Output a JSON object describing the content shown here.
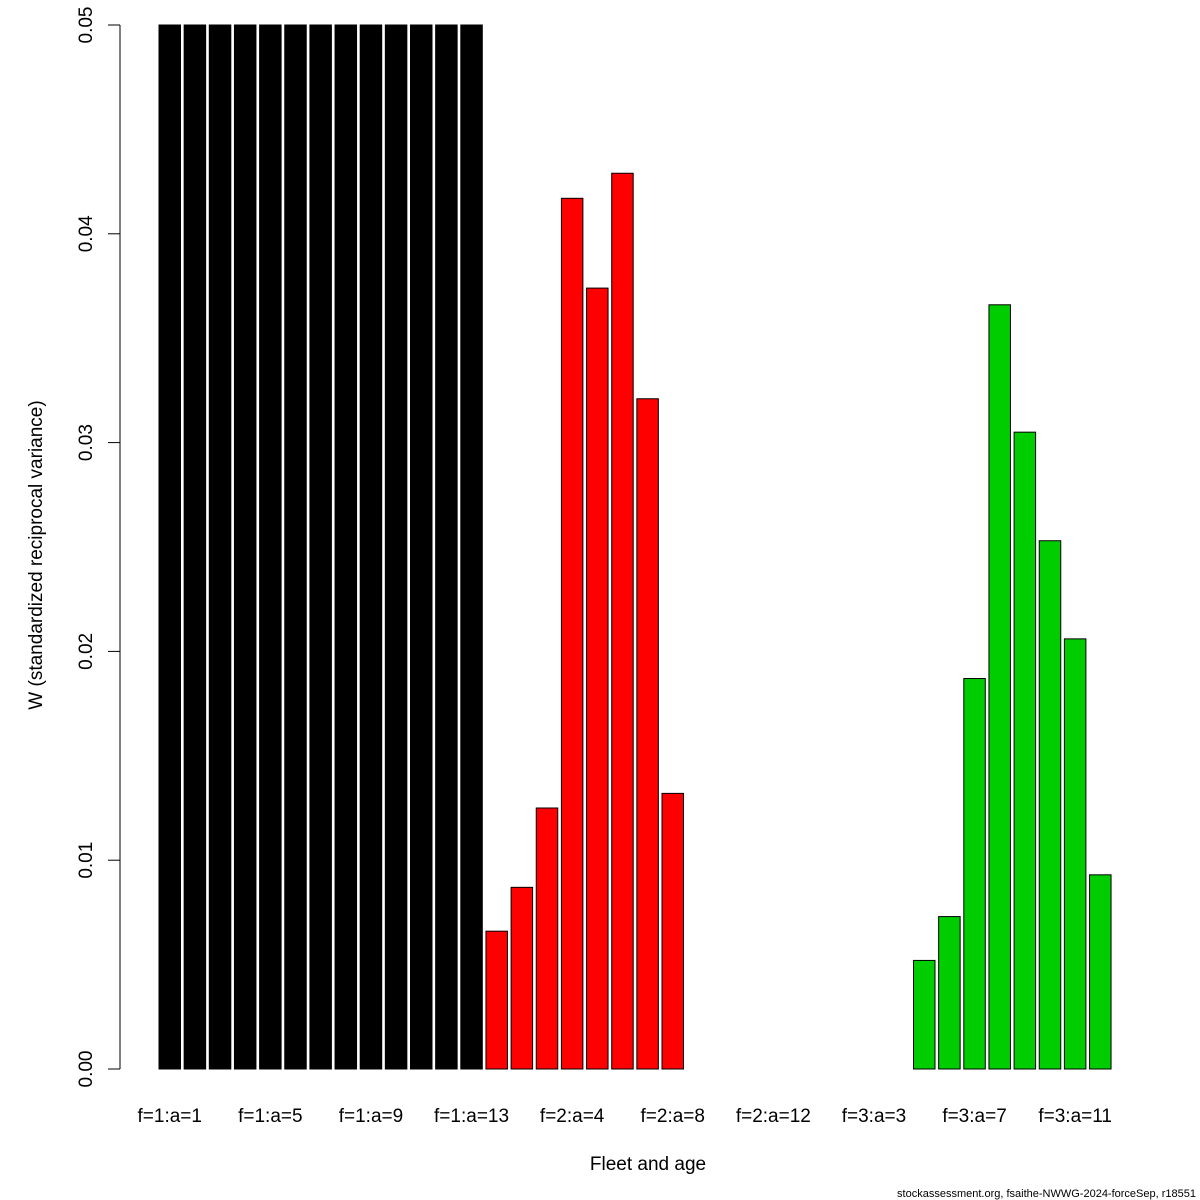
{
  "chart_data": {
    "type": "bar",
    "xlabel": "Fleet and age",
    "ylabel": "W (standardized reciprocal variance)",
    "ylim": [
      0,
      0.05
    ],
    "yticks": [
      "0.00",
      "0.01",
      "0.02",
      "0.03",
      "0.04",
      "0.05"
    ],
    "grid": false,
    "categories": [
      "f=1:a=1",
      "f=1:a=2",
      "f=1:a=3",
      "f=1:a=4",
      "f=1:a=5",
      "f=1:a=6",
      "f=1:a=7",
      "f=1:a=8",
      "f=1:a=9",
      "f=1:a=10",
      "f=1:a=11",
      "f=1:a=12",
      "f=1:a=13",
      "f=2:a=1",
      "f=2:a=2",
      "f=2:a=3",
      "f=2:a=4",
      "f=2:a=5",
      "f=2:a=6",
      "f=2:a=7",
      "f=2:a=8",
      "f=2:a=9",
      "f=2:a=10",
      "f=2:a=11",
      "f=2:a=12",
      "f=2:a=13",
      "f=3:a=1",
      "f=3:a=2",
      "f=3:a=3",
      "f=3:a=4",
      "f=3:a=5",
      "f=3:a=6",
      "f=3:a=7",
      "f=3:a=8",
      "f=3:a=9",
      "f=3:a=10",
      "f=3:a=11",
      "f=3:a=12",
      "f=3:a=13"
    ],
    "shown_tick_labels": [
      "f=1:a=1",
      "f=1:a=5",
      "f=1:a=9",
      "f=1:a=13",
      "f=2:a=4",
      "f=2:a=8",
      "f=2:a=12",
      "f=3:a=3",
      "f=3:a=7",
      "f=3:a=11"
    ],
    "values": [
      0.05,
      0.05,
      0.05,
      0.05,
      0.05,
      0.05,
      0.05,
      0.05,
      0.05,
      0.05,
      0.05,
      0.05,
      0.05,
      0.0066,
      0.0087,
      0.0125,
      0.0417,
      0.0374,
      0.0429,
      0.0321,
      0.0132,
      0,
      0,
      0,
      0,
      0,
      0,
      0,
      0,
      0,
      0.0052,
      0.0073,
      0.0187,
      0.0366,
      0.0305,
      0.0253,
      0.0206,
      0.0093,
      0
    ],
    "fleet_colors": {
      "1": "#000000",
      "2": "#ff0000",
      "3": "#00cd00"
    },
    "credit": "stockassessment.org, fsaithe-NWWG-2024-forceSep, r18551"
  }
}
